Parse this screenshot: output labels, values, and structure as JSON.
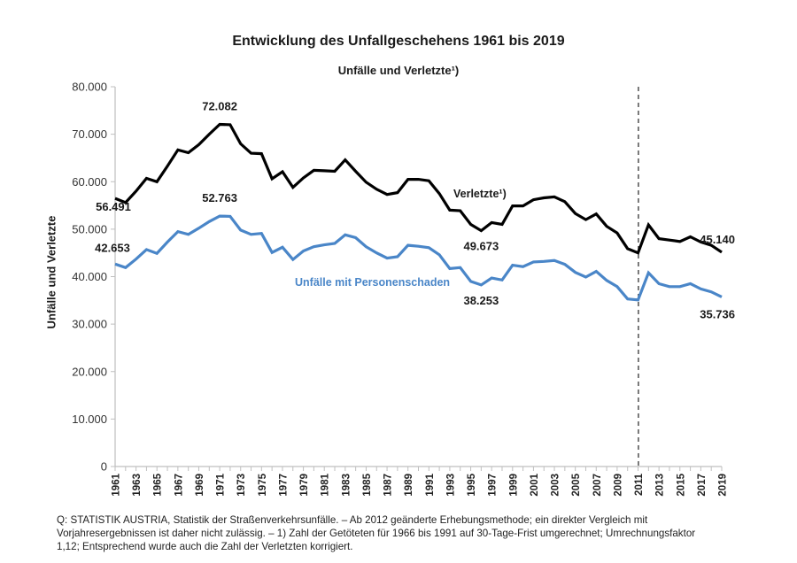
{
  "chart_data": {
    "type": "line",
    "title": "Entwicklung des Unfallgeschehens 1961 bis 2019",
    "subtitle": "Unfälle und Verletzte¹)",
    "xlabel": "",
    "ylabel": "Unfälle und Verletzte",
    "ylim": [
      0,
      80000
    ],
    "yticks": [
      0,
      10000,
      20000,
      30000,
      40000,
      50000,
      60000,
      70000,
      80000
    ],
    "ytick_labels": [
      "0",
      "10.000",
      "20.000",
      "30.000",
      "40.000",
      "50.000",
      "60.000",
      "70.000",
      "80.000"
    ],
    "x": [
      1961,
      1962,
      1963,
      1964,
      1965,
      1966,
      1967,
      1968,
      1969,
      1970,
      1971,
      1972,
      1973,
      1974,
      1975,
      1976,
      1977,
      1978,
      1979,
      1980,
      1981,
      1982,
      1983,
      1984,
      1985,
      1986,
      1987,
      1988,
      1989,
      1990,
      1991,
      1992,
      1993,
      1994,
      1995,
      1996,
      1997,
      1998,
      1999,
      2000,
      2001,
      2002,
      2003,
      2004,
      2005,
      2006,
      2007,
      2008,
      2009,
      2010,
      2011,
      2012,
      2013,
      2014,
      2015,
      2016,
      2017,
      2018,
      2019
    ],
    "xtick_labels": [
      "1961",
      "1963",
      "1965",
      "1967",
      "1969",
      "1971",
      "1973",
      "1975",
      "1977",
      "1979",
      "1981",
      "1983",
      "1985",
      "1987",
      "1989",
      "1991",
      "1993",
      "1995",
      "1997",
      "1999",
      "2001",
      "2003",
      "2005",
      "2007",
      "2009",
      "2011",
      "2013",
      "2015",
      "2017",
      "2019"
    ],
    "grid": false,
    "legend": "none (inline series labels)",
    "series": [
      {
        "name": "Verletzte¹)",
        "color": "#000000",
        "values": [
          56491,
          55600,
          58000,
          60700,
          60000,
          63300,
          66700,
          66100,
          67800,
          70000,
          72082,
          72000,
          68000,
          66000,
          65900,
          60600,
          62100,
          58800,
          60800,
          62400,
          62300,
          62200,
          64600,
          62200,
          59900,
          58400,
          57300,
          57700,
          60500,
          60500,
          60200,
          57500,
          54000,
          53900,
          51000,
          49673,
          51400,
          51000,
          54900,
          54900,
          56200,
          56600,
          56800,
          55800,
          53300,
          52000,
          53200,
          50600,
          49200,
          45900,
          45000,
          50900,
          48000,
          47700,
          47400,
          48400,
          47300,
          46600,
          45140
        ]
      },
      {
        "name": "Unfälle mit Personenschaden",
        "color": "#4a86c8",
        "values": [
          42653,
          41900,
          43700,
          45700,
          44900,
          47300,
          49500,
          48900,
          50200,
          51600,
          52763,
          52700,
          49800,
          48900,
          49100,
          45100,
          46200,
          43600,
          45400,
          46300,
          46700,
          47000,
          48800,
          48200,
          46300,
          45000,
          43900,
          44200,
          46600,
          46400,
          46100,
          44600,
          41700,
          41900,
          39000,
          38253,
          39700,
          39300,
          42400,
          42100,
          43100,
          43200,
          43400,
          42600,
          40900,
          39900,
          41100,
          39200,
          37900,
          35300,
          35100,
          40800,
          38500,
          37900,
          37900,
          38500,
          37400,
          36800,
          35736
        ]
      }
    ],
    "annotations": [
      {
        "text": "72.082",
        "series": 0,
        "x": 1971,
        "position": "above"
      },
      {
        "text": "56.491",
        "series": 0,
        "x": 1961,
        "position": "below"
      },
      {
        "text": "49.673",
        "series": 0,
        "x": 1996,
        "position": "below"
      },
      {
        "text": "45.140",
        "series": 0,
        "x": 2019,
        "position": "above"
      },
      {
        "text": "52.763",
        "series": 1,
        "x": 1971,
        "position": "above"
      },
      {
        "text": "42.653",
        "series": 1,
        "x": 1961,
        "position": "above"
      },
      {
        "text": "38.253",
        "series": 1,
        "x": 1996,
        "position": "below"
      },
      {
        "text": "35.736",
        "series": 1,
        "x": 2019,
        "position": "below"
      },
      {
        "text": "Verletzte¹)",
        "series": 0,
        "x": 1993,
        "position": "label"
      },
      {
        "text": "Unfälle mit Personenschaden",
        "series": 1,
        "x": 1984,
        "position": "label"
      }
    ],
    "reference_line": {
      "x": 2011.5,
      "style": "dashed",
      "meaning": "Ab 2012 geänderte Erhebungsmethode"
    }
  },
  "footer": {
    "line1": "Q: STATISTIK AUSTRIA, Statistik der Straßenverkehrsunfälle. – Ab 2012 geänderte Erhebungsmethode; ein direkter Vergleich mit",
    "line2": "Vorjahresergebnissen ist daher nicht zulässig. – 1) Zahl der Getöteten für 1966 bis 1991 auf 30-Tage-Frist umgerechnet; Umrechnungsfaktor",
    "line3": "1,12; Entsprechend wurde auch die Zahl der Verletzten korrigiert."
  }
}
